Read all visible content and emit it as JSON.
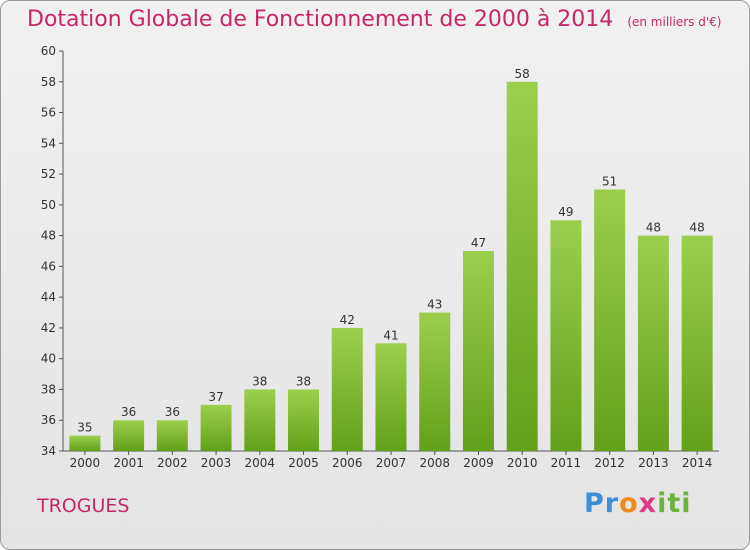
{
  "title": "Dotation Globale de Fonctionnement de 2000 à 2014",
  "subtitle": "(en milliers d'€)",
  "commune": "TROGUES",
  "logo": "Proxiti",
  "colors": {
    "bar_light": "#9ccf4e",
    "bar_dark": "#63a01a",
    "title": "#c8266b"
  },
  "chart_data": {
    "type": "bar",
    "title": "Dotation Globale de Fonctionnement de 2000 à 2014",
    "subtitle": "(en milliers d'€)",
    "categories": [
      "2000",
      "2001",
      "2002",
      "2003",
      "2004",
      "2005",
      "2006",
      "2007",
      "2008",
      "2009",
      "2010",
      "2011",
      "2012",
      "2013",
      "2014"
    ],
    "values": [
      35,
      36,
      36,
      37,
      38,
      38,
      42,
      41,
      43,
      47,
      58,
      49,
      51,
      48,
      48
    ],
    "ylim": [
      34,
      60
    ],
    "yticks": [
      34,
      36,
      38,
      40,
      42,
      44,
      46,
      48,
      50,
      52,
      54,
      56,
      58,
      60
    ],
    "grid": false,
    "xlabel": "",
    "ylabel": ""
  }
}
